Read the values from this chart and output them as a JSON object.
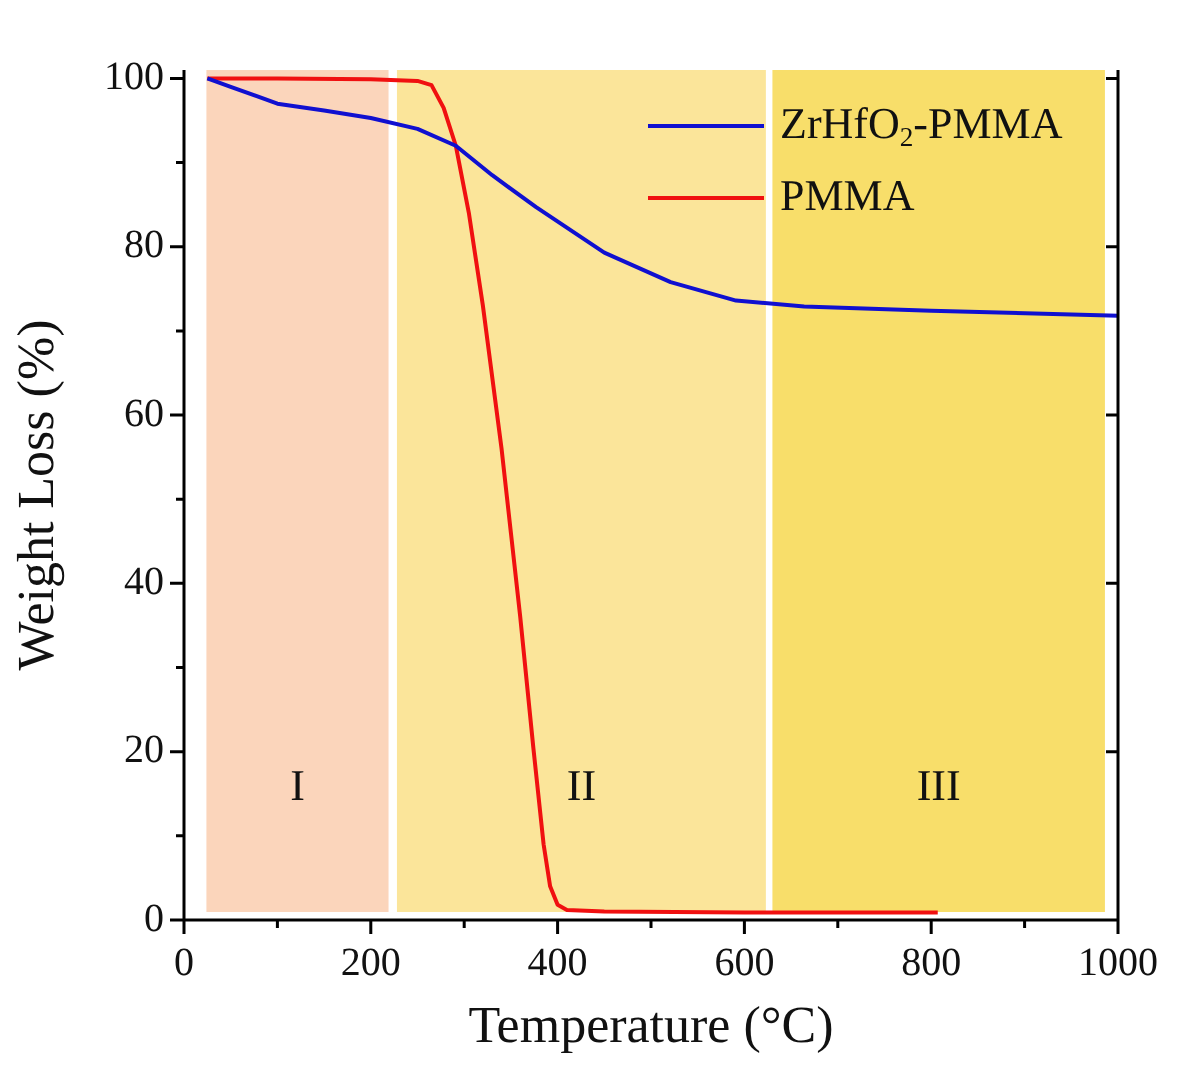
{
  "chart_data": {
    "type": "line",
    "xlabel": "Temperature (°C)",
    "ylabel": "Weight Loss (%)",
    "xlim": [
      0,
      1000
    ],
    "xticks": [
      0,
      200,
      400,
      600,
      800,
      1000
    ],
    "ylim": [
      0,
      101
    ],
    "yticks": [
      0,
      20,
      40,
      60,
      80,
      100
    ],
    "grid": false,
    "legend": "top right",
    "marker": "none",
    "line_style": "solid",
    "series": [
      {
        "name": "ZrHfO$_{2}$-PMMA",
        "color": "#1010d0",
        "x": [
          25,
          50,
          100,
          150,
          200,
          250,
          291,
          330,
          377,
          450,
          521,
          591,
          664,
          800,
          1000
        ],
        "values": [
          100,
          99,
          97,
          96.2,
          95.3,
          94,
          92,
          88.5,
          84.7,
          79.3,
          75.8,
          73.6,
          72.9,
          72.4,
          71.8
        ]
      },
      {
        "name": "PMMA",
        "color": "#f01010",
        "x": [
          25,
          100,
          200,
          250,
          265,
          278,
          291,
          305,
          320,
          340,
          360,
          374,
          385,
          392,
          400,
          410,
          450,
          600,
          807
        ],
        "values": [
          100,
          100,
          99.9,
          99.7,
          99.2,
          96.5,
          92,
          84,
          73,
          56,
          36,
          20.5,
          9,
          4,
          1.8,
          1.2,
          1,
          0.9,
          0.9
        ]
      }
    ],
    "bands": [
      {
        "axis": "x",
        "from": 24,
        "to": 219,
        "label": "I",
        "color": "#fbd5bb"
      },
      {
        "axis": "x",
        "from": 228,
        "to": 623,
        "label": "II",
        "color": "#fbe59a"
      },
      {
        "axis": "x",
        "from": 630,
        "to": 986,
        "label": "III",
        "color": "#f8de6a"
      }
    ]
  }
}
